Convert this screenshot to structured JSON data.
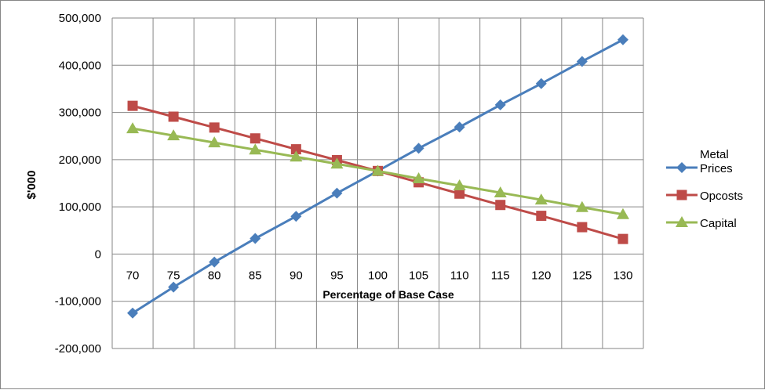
{
  "chart_data": {
    "type": "line",
    "title": "",
    "xlabel": "Percentage of Base Case",
    "ylabel": "$'000",
    "categories": [
      "70",
      "75",
      "80",
      "85",
      "90",
      "95",
      "100",
      "105",
      "110",
      "115",
      "120",
      "125",
      "130"
    ],
    "ylim": [
      -200000,
      500000
    ],
    "yticks": [
      -200000,
      -100000,
      0,
      100000,
      200000,
      300000,
      400000,
      500000
    ],
    "ytick_labels": [
      "-200,000",
      "-100,000",
      "0",
      "100,000",
      "200,000",
      "300,000",
      "400,000",
      "500,000"
    ],
    "grid": true,
    "legend_position": "right",
    "series": [
      {
        "name": "Metal Prices",
        "name_lines": [
          "Metal",
          "Prices"
        ],
        "color": "#4a7ebb",
        "marker": "diamond",
        "values": [
          -125000,
          -70000,
          -17000,
          33000,
          80000,
          129000,
          176000,
          224000,
          269000,
          316000,
          361000,
          408000,
          454000
        ]
      },
      {
        "name": "Opcosts",
        "name_lines": [
          "Opcosts"
        ],
        "color": "#be4b48",
        "marker": "square",
        "values": [
          314000,
          291000,
          268000,
          245000,
          222000,
          199000,
          176000,
          152000,
          128000,
          104000,
          81000,
          57000,
          32000
        ]
      },
      {
        "name": "Capital",
        "name_lines": [
          "Capital"
        ],
        "color": "#98b954",
        "marker": "triangle",
        "values": [
          266000,
          251000,
          236000,
          221000,
          206000,
          191000,
          176000,
          160000,
          145000,
          130000,
          115000,
          99000,
          84000
        ]
      }
    ]
  }
}
